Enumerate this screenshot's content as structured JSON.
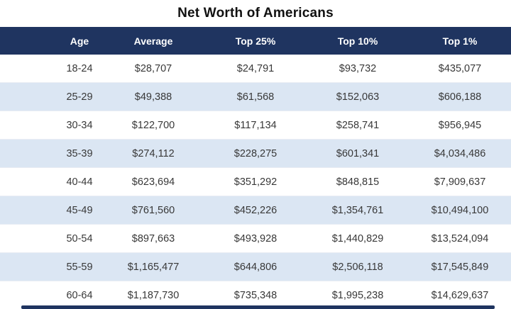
{
  "title": "Net Worth of Americans",
  "colors": {
    "header_bg": "#1F3460",
    "header_text": "#FFFFFF",
    "alt_row_bg": "#DBE6F3",
    "row_bg": "#FFFFFF",
    "body_text": "#383838",
    "title_text": "#111111",
    "bottom_bar": "#1F3460"
  },
  "chart_data": {
    "type": "table",
    "title": "Net Worth of Americans",
    "columns": [
      "Age",
      "Average",
      "Top 25%",
      "Top 10%",
      "Top 1%"
    ],
    "rows": [
      [
        "18-24",
        "$28,707",
        "$24,791",
        "$93,732",
        "$435,077"
      ],
      [
        "25-29",
        "$49,388",
        "$61,568",
        "$152,063",
        "$606,188"
      ],
      [
        "30-34",
        "$122,700",
        "$117,134",
        "$258,741",
        "$956,945"
      ],
      [
        "35-39",
        "$274,112",
        "$228,275",
        "$601,341",
        "$4,034,486"
      ],
      [
        "40-44",
        "$623,694",
        "$351,292",
        "$848,815",
        "$7,909,637"
      ],
      [
        "45-49",
        "$761,560",
        "$452,226",
        "$1,354,761",
        "$10,494,100"
      ],
      [
        "50-54",
        "$897,663",
        "$493,928",
        "$1,440,829",
        "$13,524,094"
      ],
      [
        "55-59",
        "$1,165,477",
        "$644,806",
        "$2,506,118",
        "$17,545,849"
      ],
      [
        "60-64",
        "$1,187,730",
        "$735,348",
        "$1,995,238",
        "$14,629,637"
      ]
    ]
  }
}
